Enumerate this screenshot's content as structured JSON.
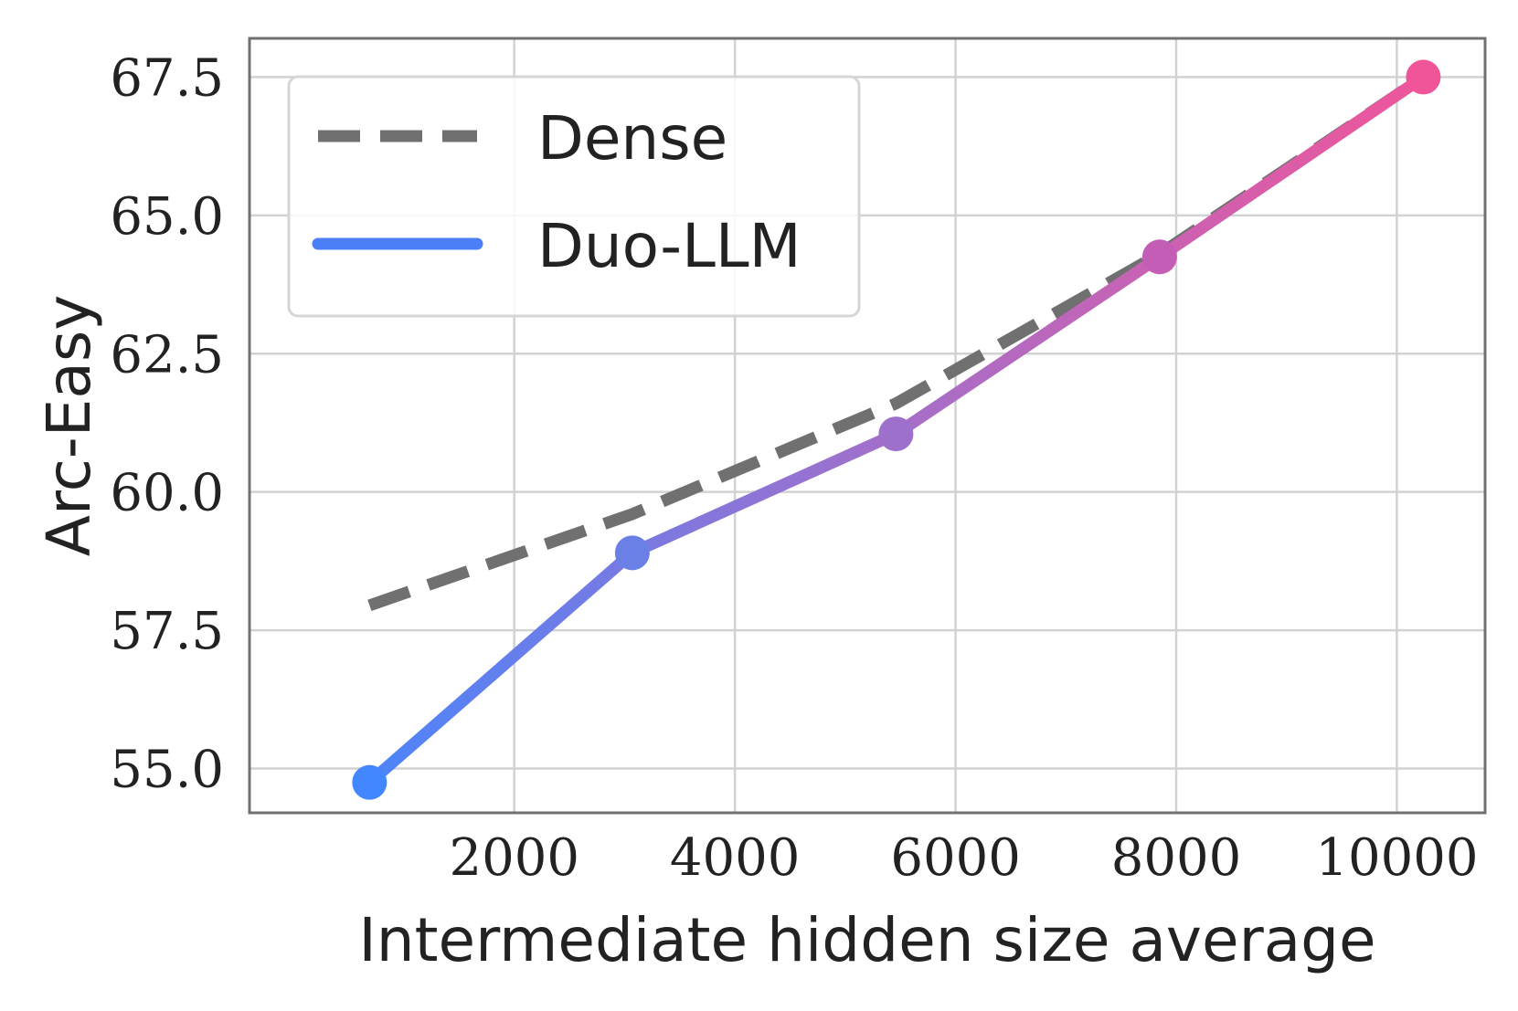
{
  "chart_data": {
    "type": "line",
    "xlabel": "Intermediate hidden size average",
    "ylabel": "Arc-Easy",
    "xlim": [
      -400,
      10800
    ],
    "ylim": [
      54.2,
      68.2
    ],
    "xticks": [
      2000,
      4000,
      6000,
      8000,
      10000
    ],
    "xtick_labels": [
      "2000",
      "4000",
      "6000",
      "8000",
      "10000"
    ],
    "yticks": [
      55.0,
      57.5,
      60.0,
      62.5,
      65.0,
      67.5
    ],
    "ytick_labels": [
      "55.0",
      "57.5",
      "60.0",
      "62.5",
      "65.0",
      "67.5"
    ],
    "grid": true,
    "legend_position": "top-left",
    "series": [
      {
        "name": "Dense",
        "style": "dashed",
        "color": "#707070",
        "x": [
          688,
          3070,
          5460,
          7850,
          10240
        ],
        "y": [
          57.95,
          59.6,
          61.6,
          64.3,
          67.5
        ]
      },
      {
        "name": "Duo-LLM",
        "style": "solid-markers",
        "gradient": [
          "#4287ff",
          "#a070cc",
          "#f0559a"
        ],
        "x": [
          688,
          3070,
          5460,
          7850,
          10240
        ],
        "y": [
          54.75,
          58.9,
          61.05,
          64.25,
          67.5
        ],
        "marker_colors": [
          "#4287ff",
          "#6b80e6",
          "#9d70cc",
          "#c45db6",
          "#f0559a"
        ]
      }
    ]
  }
}
